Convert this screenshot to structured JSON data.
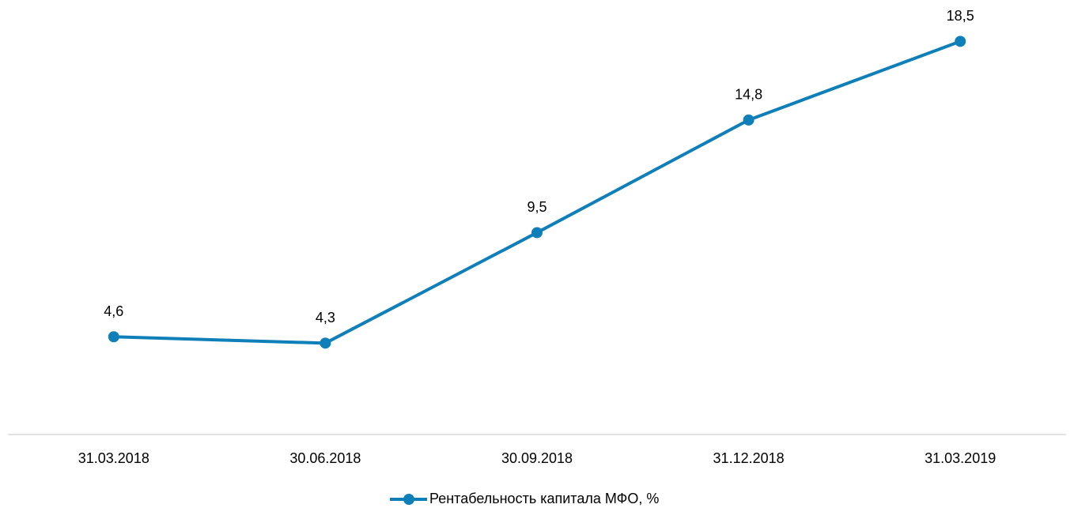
{
  "chart_data": {
    "type": "line",
    "categories": [
      "31.03.2018",
      "30.06.2018",
      "30.09.2018",
      "31.12.2018",
      "31.03.2019"
    ],
    "series": [
      {
        "name": "Рентабельность капитала МФО, %",
        "color": "#0e7fb8",
        "values": [
          4.6,
          4.3,
          9.5,
          14.8,
          18.5
        ],
        "value_labels": [
          "4,6",
          "4,3",
          "9,5",
          "14,8",
          "18,5"
        ]
      }
    ],
    "ylim": [
      0,
      20
    ],
    "legend": "bottom"
  }
}
